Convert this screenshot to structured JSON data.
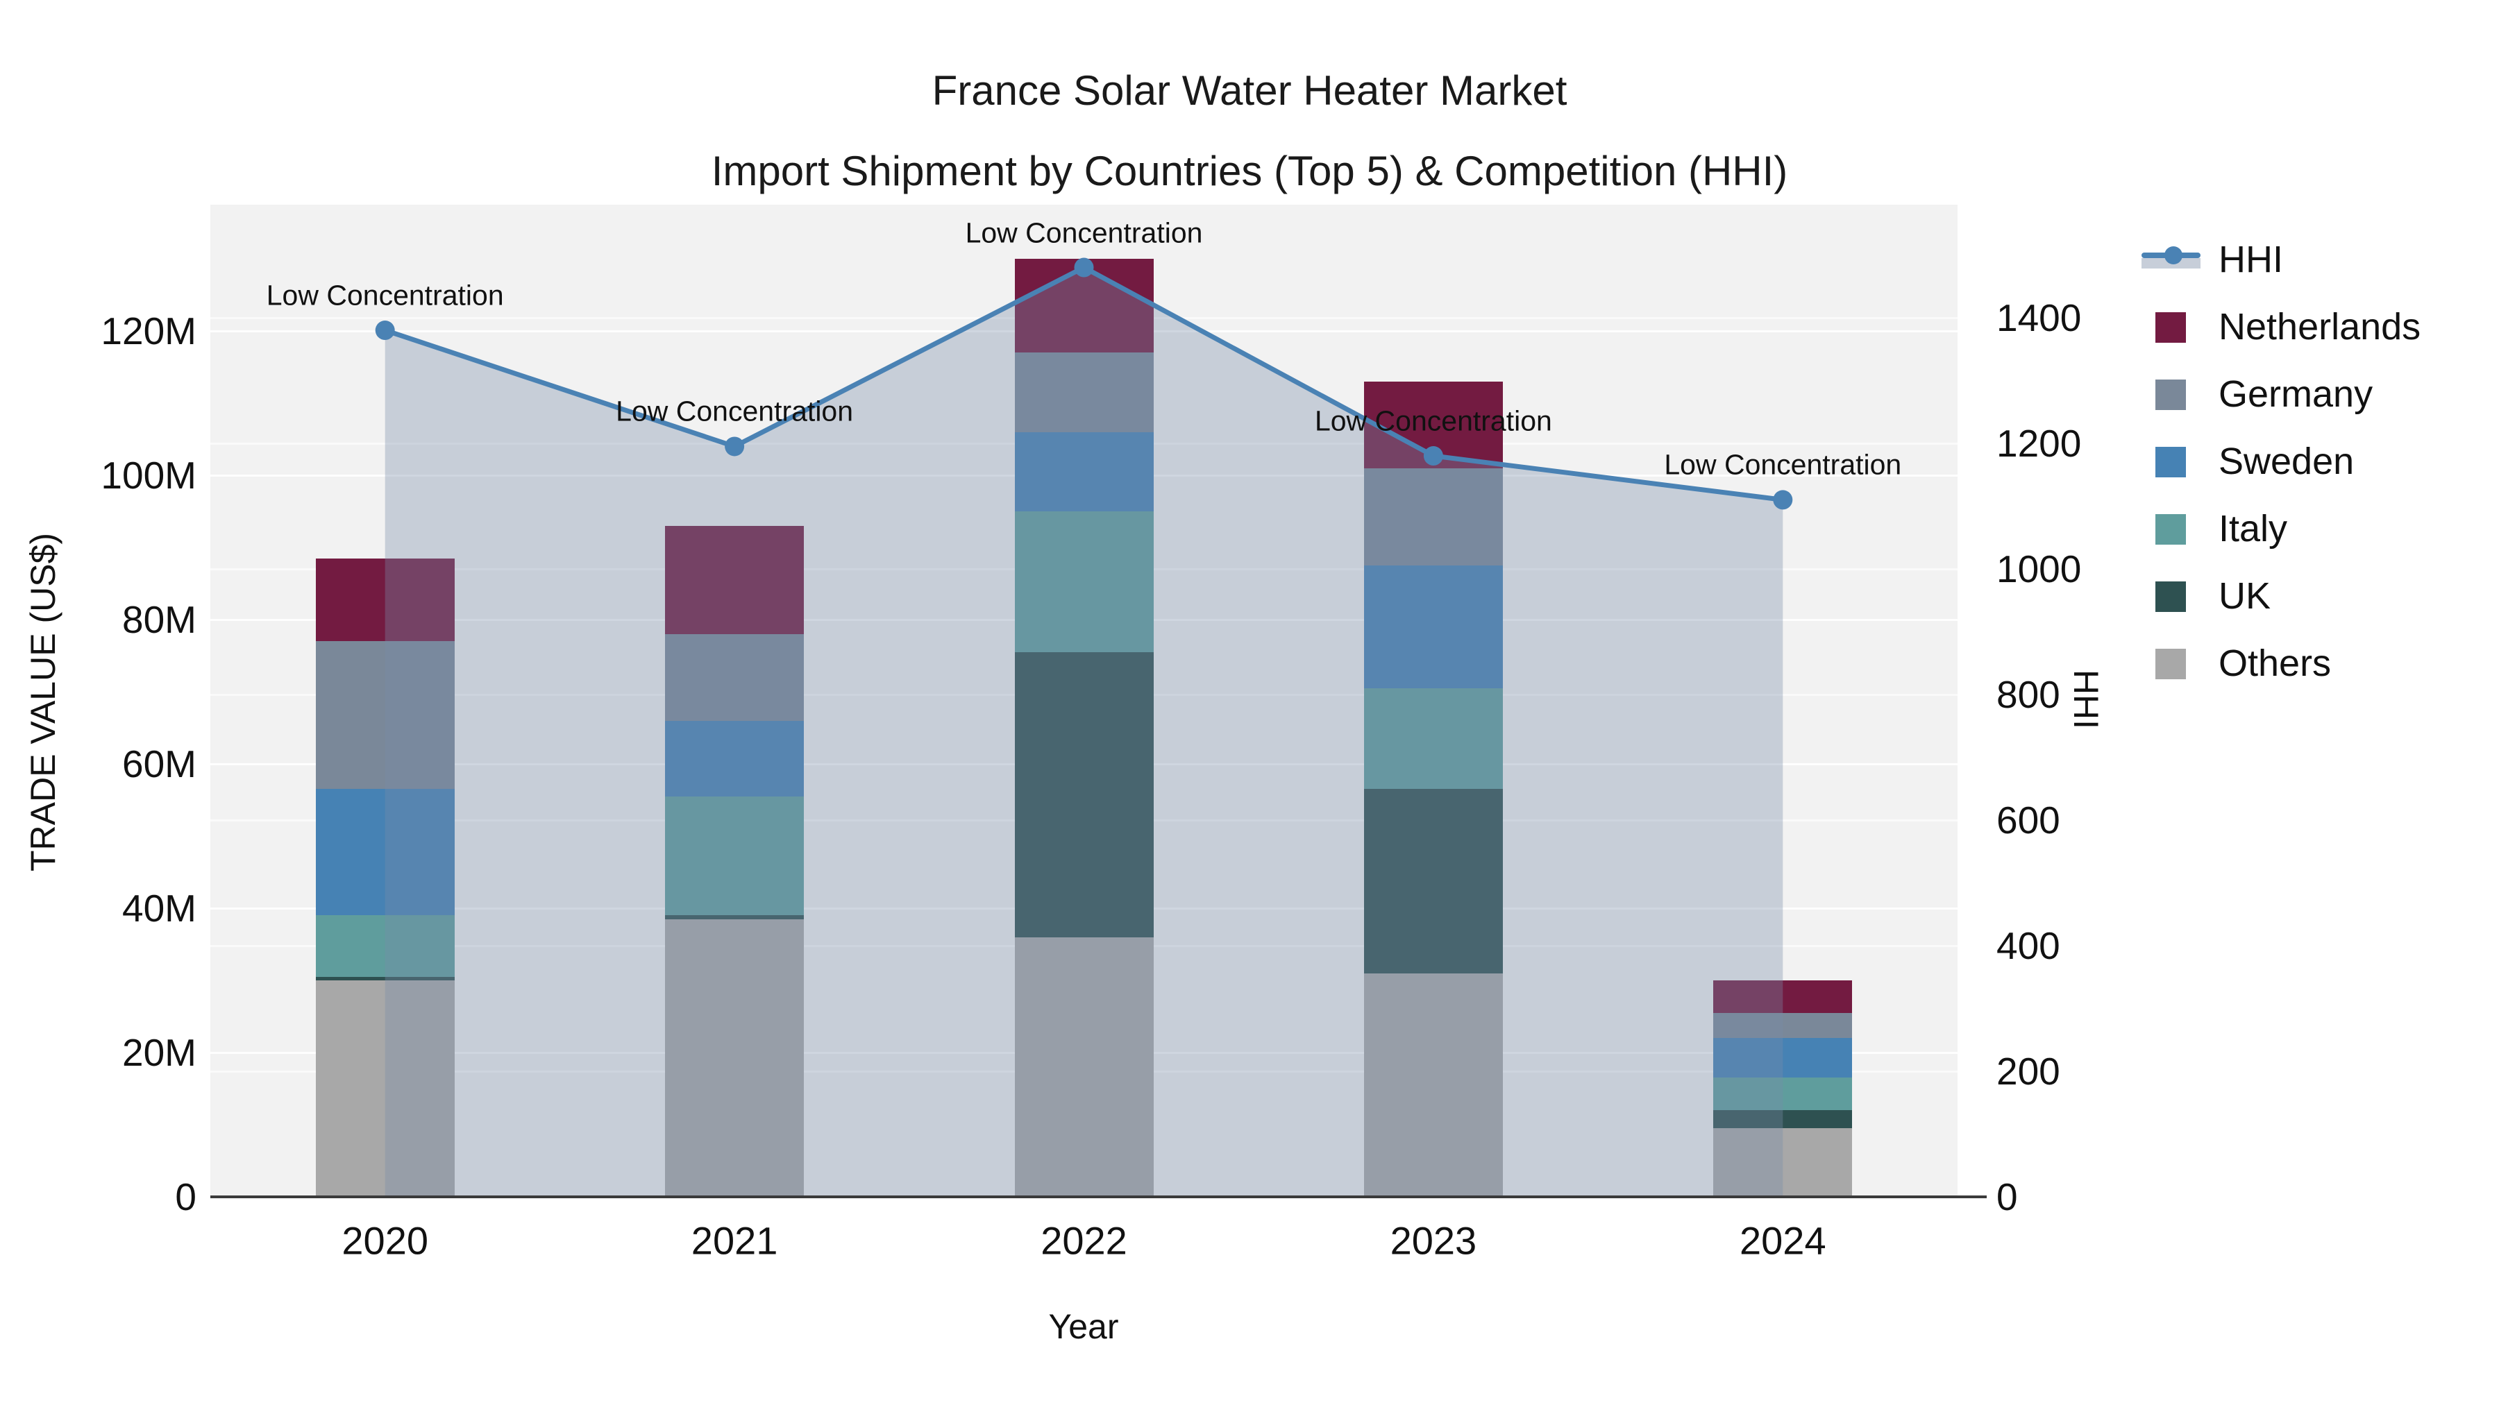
{
  "title": {
    "line1": "France Solar Water Heater Market",
    "line2": "Import Shipment by Countries (Top 5) & Competition (HHI)"
  },
  "chart_data": {
    "type": "bar",
    "subtype": "stacked-bar-with-line",
    "categories": [
      "2020",
      "2021",
      "2022",
      "2023",
      "2024"
    ],
    "xlabel": "Year",
    "ylabel_left": "TRADE VALUE (US$)",
    "ylabel_right": "HHI",
    "values_unit": "millions US$",
    "ylim_left": [
      0,
      137.5
    ],
    "ylim_right": [
      0,
      1580
    ],
    "yticks_left": {
      "values": [
        0,
        20,
        40,
        60,
        80,
        100,
        120
      ],
      "labels": [
        "0",
        "20M",
        "40M",
        "60M",
        "80M",
        "100M",
        "120M"
      ]
    },
    "yticks_right": {
      "values": [
        0,
        200,
        400,
        600,
        800,
        1000,
        1200,
        1400
      ],
      "labels": [
        "0",
        "200",
        "400",
        "600",
        "800",
        "1000",
        "1200",
        "1400"
      ]
    },
    "grid": "on",
    "legend_position": "right",
    "series": [
      {
        "name": "Others",
        "color": "#a8a8a8",
        "values": [
          30.0,
          38.5,
          36.0,
          31.0,
          9.5
        ]
      },
      {
        "name": "UK",
        "color": "#2e5151",
        "values": [
          0.5,
          0.5,
          39.5,
          25.5,
          2.5
        ]
      },
      {
        "name": "Italy",
        "color": "#5f9d9d",
        "values": [
          8.5,
          16.5,
          19.5,
          14.0,
          4.5
        ]
      },
      {
        "name": "Sweden",
        "color": "#4682b4",
        "values": [
          17.5,
          10.5,
          11.0,
          17.0,
          5.5
        ]
      },
      {
        "name": "Germany",
        "color": "#7a8899",
        "values": [
          20.5,
          12.0,
          11.0,
          13.5,
          3.5
        ]
      },
      {
        "name": "Netherlands",
        "color": "#731b41",
        "values": [
          11.5,
          15.0,
          13.0,
          12.0,
          4.5
        ]
      }
    ],
    "line_series": {
      "name": "HHI",
      "color": "#4a82b4",
      "area_fill_color": "rgba(119,139,170,0.35)",
      "values": [
        1380,
        1195,
        1480,
        1180,
        1110
      ],
      "axis": "right"
    },
    "annotations": [
      {
        "x": "2020",
        "text": "Low Concentration"
      },
      {
        "x": "2021",
        "text": "Low Concentration"
      },
      {
        "x": "2022",
        "text": "Low Concentration"
      },
      {
        "x": "2023",
        "text": "Low Concentration"
      },
      {
        "x": "2024",
        "text": "Low Concentration"
      }
    ],
    "legend": [
      "HHI",
      "Netherlands",
      "Germany",
      "Sweden",
      "Italy",
      "UK",
      "Others"
    ]
  }
}
